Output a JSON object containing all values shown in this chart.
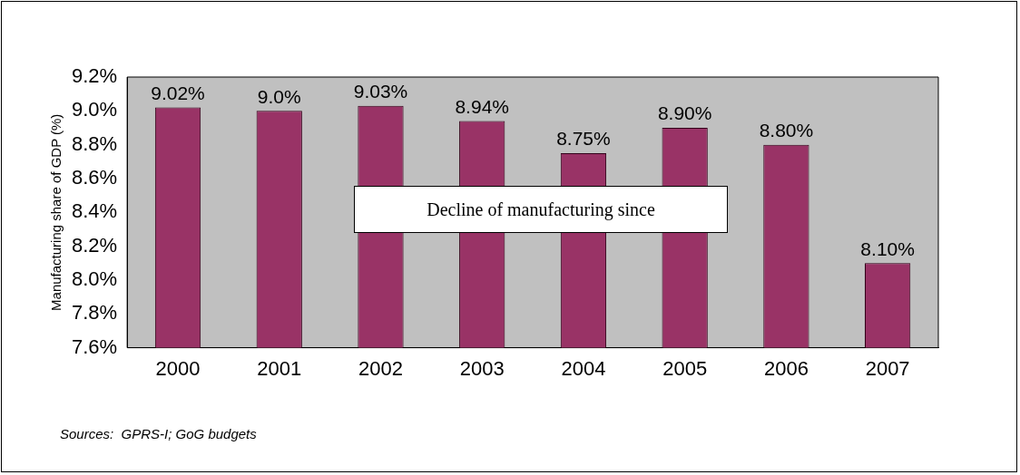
{
  "chart_data": {
    "type": "bar",
    "categories": [
      "2000",
      "2001",
      "2002",
      "2003",
      "2004",
      "2005",
      "2006",
      "2007"
    ],
    "values": [
      9.02,
      9.0,
      9.03,
      8.94,
      8.75,
      8.9,
      8.8,
      8.1
    ],
    "value_labels": [
      "9.02%",
      "9.0%",
      "9.03%",
      "8.94%",
      "8.75%",
      "8.90%",
      "8.80%",
      "8.10%"
    ],
    "color": "#993366",
    "ylabel": "Manufacturing share of GDP (%)",
    "ylim": [
      7.6,
      9.2
    ],
    "yticks": [
      {
        "value": 7.6,
        "label": "7.6%"
      },
      {
        "value": 7.8,
        "label": "7.8%"
      },
      {
        "value": 8.0,
        "label": "8.0%"
      },
      {
        "value": 8.2,
        "label": "8.2%"
      },
      {
        "value": 8.4,
        "label": "8.4%"
      },
      {
        "value": 8.6,
        "label": "8.6%"
      },
      {
        "value": 8.8,
        "label": "8.8%"
      },
      {
        "value": 9.0,
        "label": "9.0%"
      },
      {
        "value": 9.2,
        "label": "9.2%"
      }
    ],
    "annotations": [
      "Decline of manufacturing since",
      "Sources:  GPRS-I; GoG budgets"
    ],
    "grid": false,
    "legend": false
  }
}
